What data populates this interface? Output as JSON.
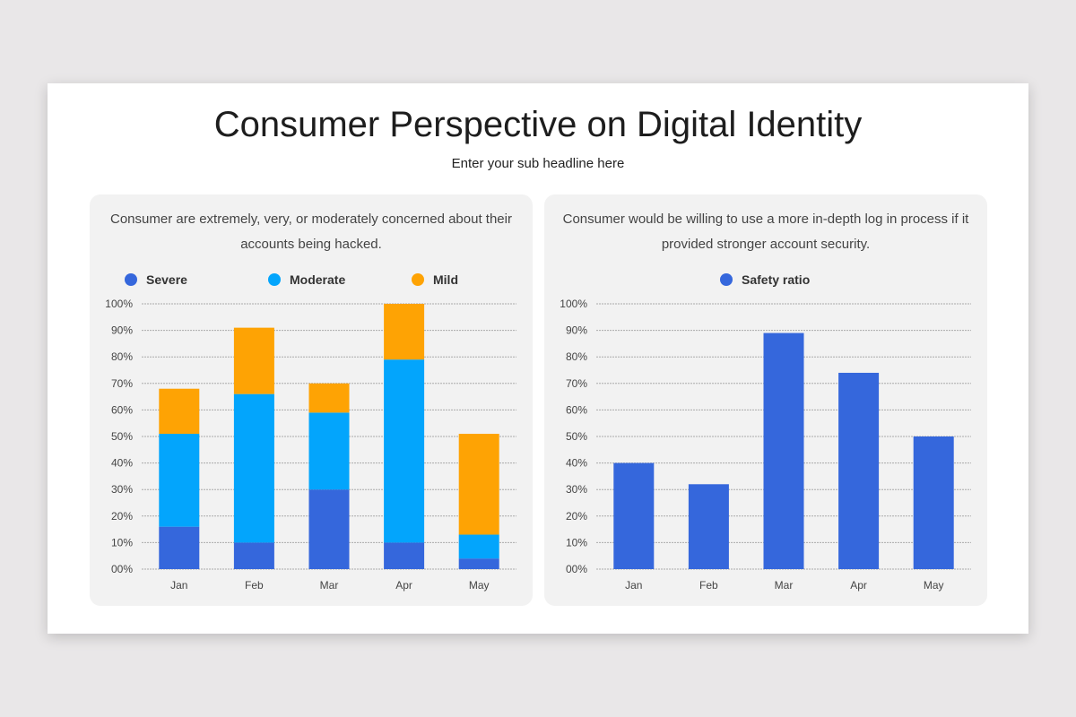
{
  "header": {
    "title": "Consumer Perspective on Digital Identity",
    "subtitle": "Enter your sub headline here"
  },
  "chart_data": [
    {
      "type": "bar",
      "stacked": true,
      "title": "Consumer are extremely, very, or moderately concerned about their accounts being hacked.",
      "categories": [
        "Jan",
        "Feb",
        "Mar",
        "Apr",
        "May"
      ],
      "series": [
        {
          "name": "Severe",
          "color": "#3567dc",
          "values": [
            16,
            10,
            30,
            10,
            4
          ]
        },
        {
          "name": "Moderate",
          "color": "#03a5fc",
          "values": [
            35,
            56,
            29,
            69,
            9
          ]
        },
        {
          "name": "Mild",
          "color": "#fea304",
          "values": [
            17,
            25,
            11,
            21,
            38
          ]
        }
      ],
      "ylim": [
        0,
        100
      ],
      "yticks": [
        "00%",
        "10%",
        "20%",
        "30%",
        "40%",
        "50%",
        "60%",
        "70%",
        "80%",
        "90%",
        "100%"
      ],
      "grid": true,
      "legend": "top"
    },
    {
      "type": "bar",
      "title": "Consumer would be willing to use a more in-depth log in process if it provided stronger account security.",
      "categories": [
        "Jan",
        "Feb",
        "Mar",
        "Apr",
        "May"
      ],
      "series": [
        {
          "name": "Safety ratio",
          "color": "#3567dc",
          "values": [
            40,
            32,
            89,
            74,
            50
          ]
        }
      ],
      "ylim": [
        0,
        100
      ],
      "yticks": [
        "00%",
        "10%",
        "20%",
        "30%",
        "40%",
        "50%",
        "60%",
        "70%",
        "80%",
        "90%",
        "100%"
      ],
      "grid": true,
      "legend": "top"
    }
  ]
}
